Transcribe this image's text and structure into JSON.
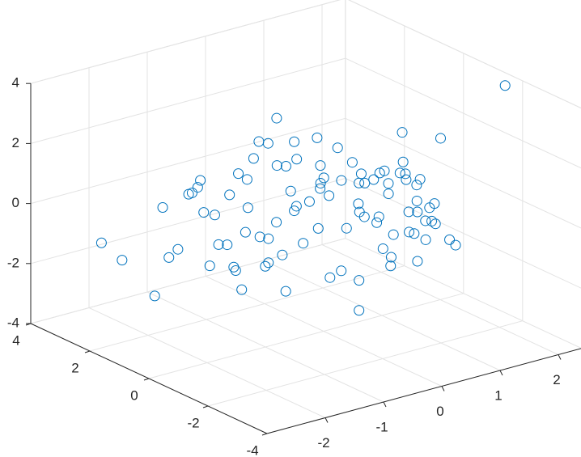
{
  "chart_data": {
    "type": "scatter3d",
    "grid": true,
    "xlim": [
      -3,
      2.4
    ],
    "ylim": [
      -4,
      4
    ],
    "zlim": [
      -4,
      4
    ],
    "xticks": [
      -2,
      -1,
      0,
      1,
      2
    ],
    "yticks": [
      -4,
      -2,
      0,
      2,
      4
    ],
    "zticks": [
      -4,
      -2,
      0,
      2,
      4
    ],
    "series": [
      {
        "color": "#0072bd",
        "x": [
          2.1,
          -2.8,
          -2.7,
          -2.9,
          0.1,
          -0.3,
          1.5,
          1.4,
          0.2,
          -0.5,
          0.8,
          -1.1,
          0.4,
          1.2,
          -0.7,
          0.0,
          -1.5,
          0.9,
          0.3,
          -0.2,
          1.6,
          -0.9,
          0.6,
          -1.3,
          0.1,
          1.0,
          -0.4,
          0.7,
          -0.8,
          1.3,
          -1.8,
          0.5,
          -0.1,
          1.8,
          -1.0,
          0.2,
          -0.6,
          1.1,
          0.4,
          -1.2,
          0.9,
          -0.3,
          1.5,
          -2.0,
          0.0,
          0.6,
          -0.7,
          1.7,
          -1.4,
          0.3,
          0.8,
          -0.5,
          1.2,
          -1.6,
          0.1,
          -0.9,
          0.5,
          1.9,
          -0.2,
          -1.1,
          0.7,
          1.4,
          -0.4,
          0.2,
          -2.2,
          1.0,
          -0.8,
          0.3,
          1.6,
          -1.3,
          0.0,
          0.8,
          -0.6,
          1.1,
          -1.7,
          0.4,
          -0.1,
          1.3,
          -0.9,
          0.6,
          -1.5,
          0.2,
          1.0,
          -0.3,
          -2.4,
          0.9,
          -0.7,
          0.5,
          1.5,
          -1.0,
          0.1,
          -0.5,
          1.2,
          -1.9,
          0.7,
          -0.2,
          0.3,
          2.0
        ],
        "y": [
          -2,
          2,
          1.5,
          0,
          -1,
          1,
          -1,
          -1.5,
          0.5,
          -1.2,
          1.8,
          -0.3,
          0.9,
          -2.1,
          0.2,
          1.4,
          -0.8,
          0.6,
          -1.6,
          0.3,
          1.1,
          -0.5,
          2.3,
          0.0,
          -1.0,
          0.7,
          -2.0,
          1.5,
          0.4,
          -0.7,
          1.9,
          -1.3,
          0.8,
          -0.2,
          2.6,
          -1.8,
          0.1,
          1.2,
          -0.6,
          0.9,
          -1.4,
          2.0,
          0.3,
          -0.9,
          1.6,
          -2.4,
          0.5,
          -0.1,
          1.3,
          -1.1,
          0.2,
          2.2,
          -0.4,
          0.7,
          -1.7,
          1.0,
          -2.8,
          0.6,
          1.8,
          -0.3,
          -1.5,
          0.4,
          2.1,
          -0.8,
          0.9,
          -1.2,
          1.4,
          -2.2,
          0.0,
          1.7,
          -0.6,
          2.5,
          -1.0,
          0.3,
          1.1,
          -1.9,
          0.8,
          -0.5,
          2.4,
          -1.4,
          0.6,
          -0.2,
          1.5,
          -2.6,
          0.2,
          1.0,
          -0.9,
          1.9,
          -0.7,
          0.4,
          -1.6,
          2.7,
          0.1,
          -1.1,
          1.2,
          -0.4,
          -2.3,
          0.5
        ],
        "z": [
          4.0,
          -0.5,
          -0.9,
          -1.3,
          -2.9,
          2.8,
          2.1,
          -1.0,
          0.6,
          -1.4,
          1.2,
          -0.2,
          0.9,
          -0.8,
          1.8,
          -2.1,
          0.3,
          -0.5,
          1.5,
          -1.1,
          0.0,
          2.2,
          -0.7,
          0.8,
          -1.9,
          0.4,
          1.1,
          -0.3,
          -1.6,
          0.7,
          0.2,
          -1.2,
          2.0,
          -0.6,
          -0.1,
          1.3,
          -2.4,
          0.5,
          1.0,
          -0.9,
          -1.5,
          0.3,
          1.7,
          -0.4,
          -1.1,
          0.9,
          2.4,
          -1.8,
          0.1,
          1.4,
          -0.7,
          -0.2,
          0.8,
          -1.3,
          2.0,
          -2.6,
          0.6,
          -0.4,
          1.6,
          -1.0,
          0.3,
          -1.7,
          0.5,
          1.2,
          -0.8,
          0.0,
          -2.2,
          1.9,
          -0.5,
          0.7,
          1.3,
          -1.4,
          0.2,
          -0.9,
          1.0,
          2.3,
          -0.3,
          -1.2,
          0.4,
          1.6,
          -0.6,
          -2.0,
          0.9,
          0.1,
          -0.1,
          -1.5,
          1.1,
          0.6,
          -0.8,
          2.1,
          0.3,
          -1.1,
          -2.5,
          0.8,
          -0.4,
          1.4,
          0.2,
          -1.6
        ]
      }
    ]
  }
}
